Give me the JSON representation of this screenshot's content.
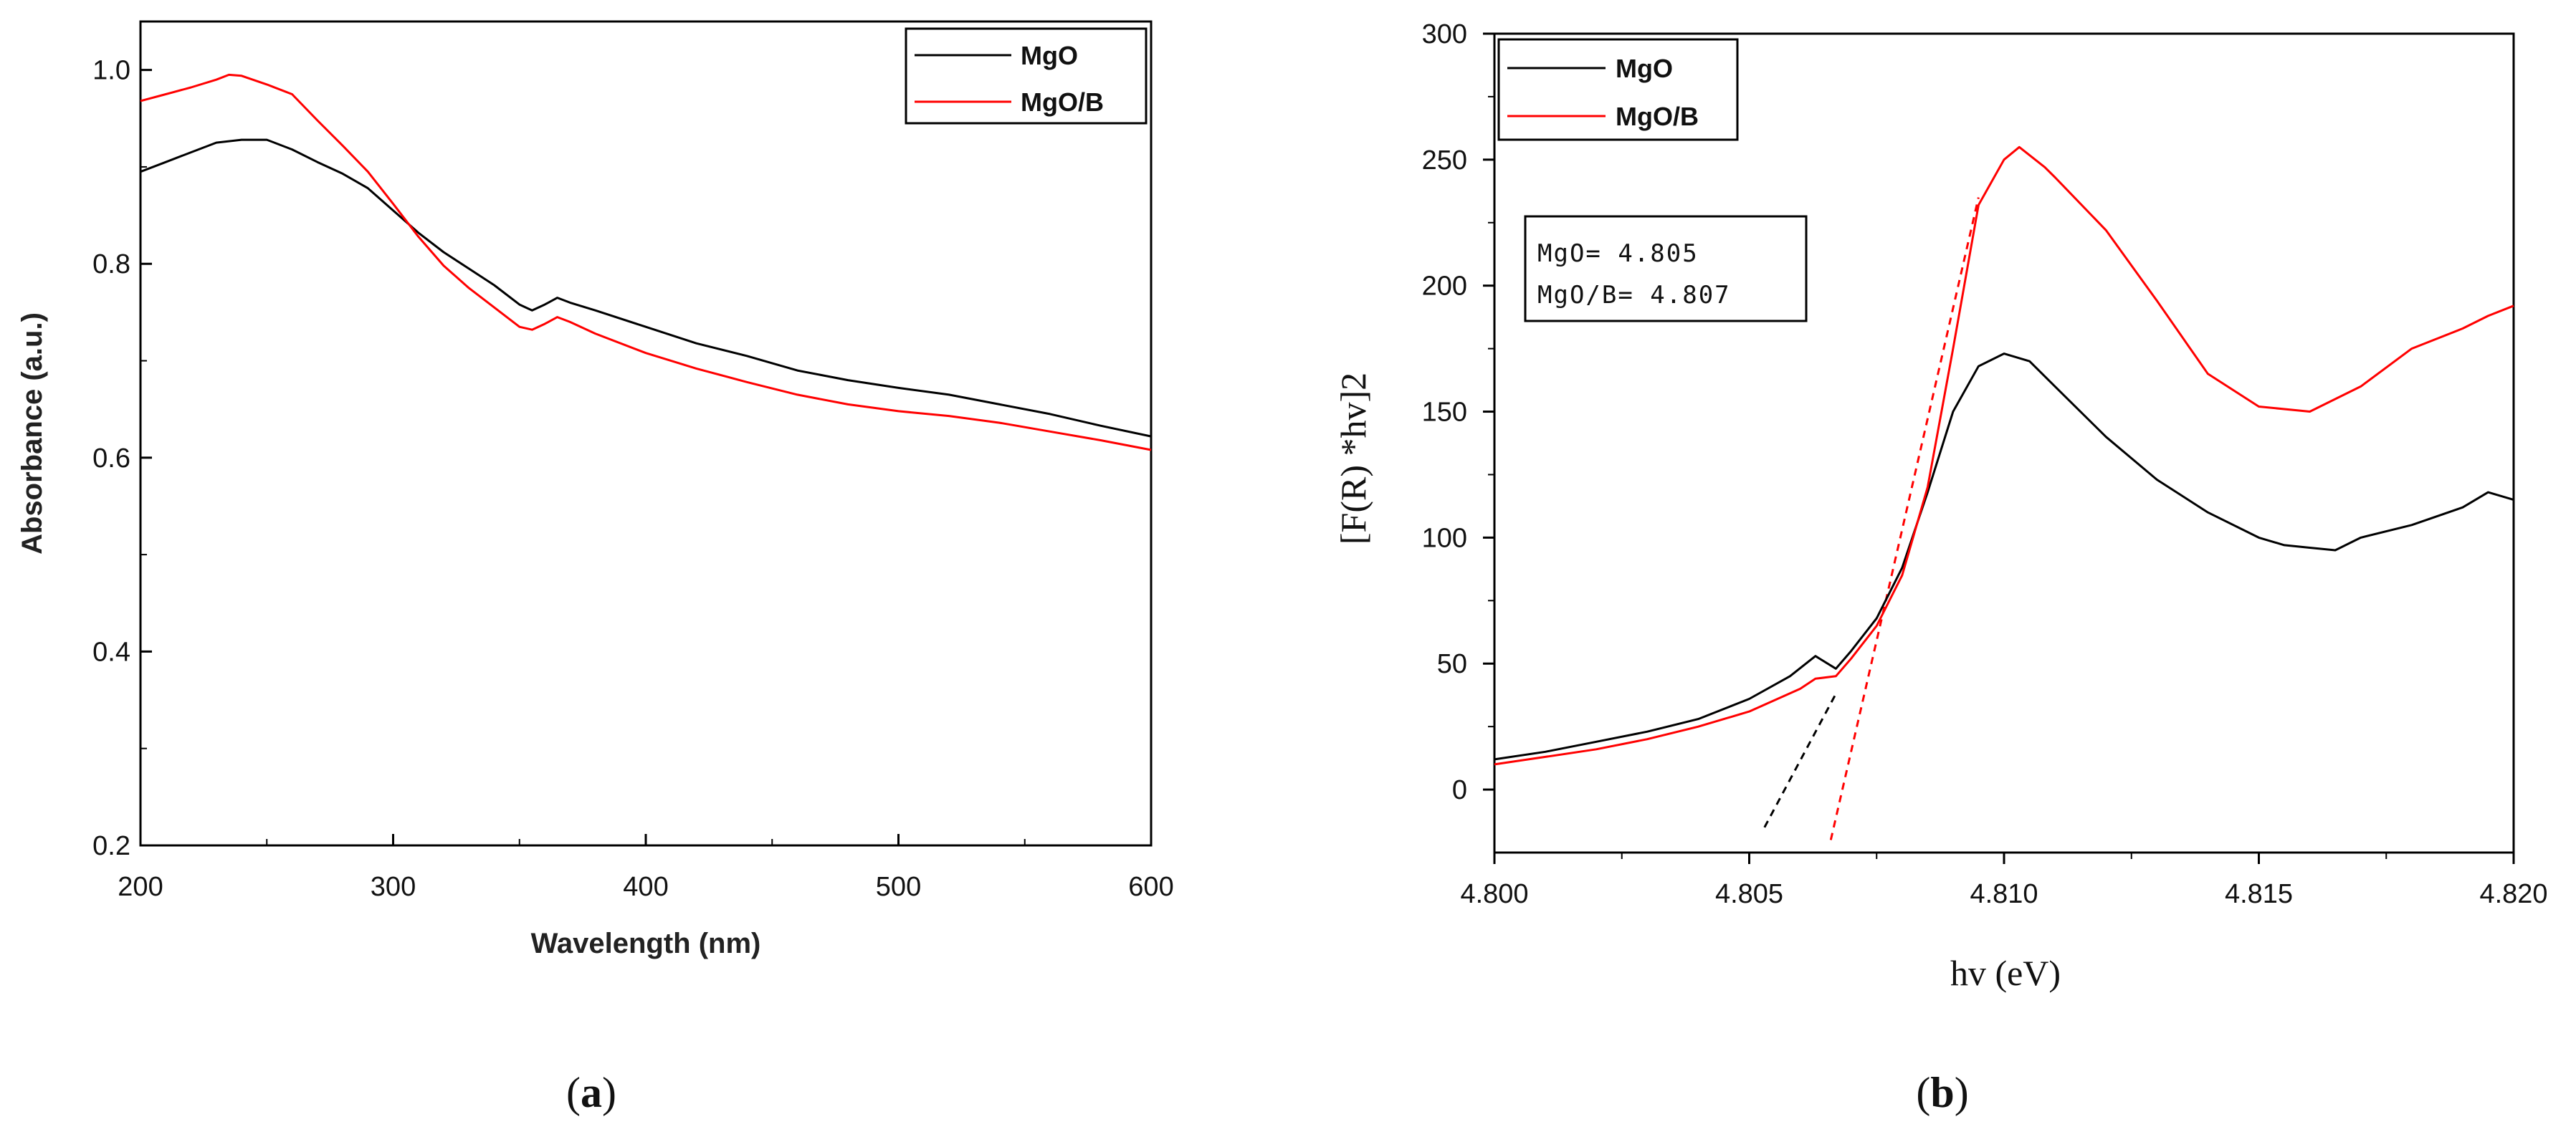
{
  "chart_data": [
    {
      "id": "a",
      "type": "line",
      "caption_label": "a",
      "xlabel": "Wavelength (nm)",
      "ylabel": "Absorbance (a.u.)",
      "xlim": [
        200,
        600
      ],
      "ylim": [
        0.2,
        1.05
      ],
      "xticks": [
        200,
        300,
        400,
        500,
        600
      ],
      "xtick_labels": [
        "200",
        "300",
        "400",
        "500",
        "600"
      ],
      "yticks": [
        0.2,
        0.4,
        0.6,
        0.8,
        1.0
      ],
      "ytick_labels": [
        "0.2",
        "0.4",
        "0.6",
        "0.8",
        "1.0"
      ],
      "legend_position": "top-right",
      "series": [
        {
          "name": "MgO",
          "color": "#000000",
          "x": [
            200,
            210,
            220,
            230,
            240,
            250,
            260,
            270,
            280,
            290,
            300,
            310,
            320,
            330,
            340,
            350,
            355,
            360,
            365,
            370,
            380,
            400,
            420,
            440,
            460,
            480,
            500,
            520,
            540,
            560,
            580,
            600
          ],
          "y": [
            0.895,
            0.905,
            0.915,
            0.925,
            0.928,
            0.928,
            0.918,
            0.905,
            0.893,
            0.878,
            0.855,
            0.832,
            0.812,
            0.795,
            0.778,
            0.758,
            0.752,
            0.758,
            0.765,
            0.76,
            0.752,
            0.735,
            0.718,
            0.705,
            0.69,
            0.68,
            0.672,
            0.665,
            0.655,
            0.645,
            0.633,
            0.622
          ]
        },
        {
          "name": "MgO/B",
          "color": "#ff0000",
          "x": [
            200,
            210,
            220,
            230,
            235,
            240,
            250,
            260,
            270,
            280,
            290,
            300,
            310,
            320,
            330,
            340,
            350,
            355,
            360,
            365,
            370,
            380,
            400,
            420,
            440,
            460,
            480,
            500,
            520,
            540,
            560,
            580,
            600
          ],
          "y": [
            0.968,
            0.975,
            0.982,
            0.99,
            0.995,
            0.994,
            0.985,
            0.975,
            0.948,
            0.922,
            0.895,
            0.862,
            0.828,
            0.798,
            0.775,
            0.755,
            0.735,
            0.732,
            0.738,
            0.745,
            0.74,
            0.728,
            0.708,
            0.692,
            0.678,
            0.665,
            0.655,
            0.648,
            0.643,
            0.636,
            0.627,
            0.618,
            0.608
          ]
        }
      ]
    },
    {
      "id": "b",
      "type": "line",
      "caption_label": "b",
      "xlabel": "hv (eV)",
      "ylabel": "[F(R) *hv]2",
      "xlim": [
        4.8,
        4.82
      ],
      "ylim": [
        -25,
        300
      ],
      "xticks": [
        4.8,
        4.805,
        4.81,
        4.815,
        4.82
      ],
      "xtick_labels": [
        "4.800",
        "4.805",
        "4.810",
        "4.815",
        "4.820"
      ],
      "yticks": [
        0,
        50,
        100,
        150,
        200,
        250,
        300
      ],
      "ytick_labels": [
        "0",
        "50",
        "100",
        "150",
        "200",
        "250",
        "300"
      ],
      "legend_position": "top-left",
      "annotation": [
        "MgO= 4.805",
        "MgO/B= 4.807"
      ],
      "series": [
        {
          "name": "MgO",
          "color": "#000000",
          "x": [
            4.8,
            4.801,
            4.802,
            4.803,
            4.804,
            4.805,
            4.8058,
            4.8063,
            4.8067,
            4.807,
            4.8075,
            4.808,
            4.8085,
            4.809,
            4.8095,
            4.81,
            4.8105,
            4.811,
            4.812,
            4.813,
            4.814,
            4.815,
            4.8155,
            4.816,
            4.8165,
            4.817,
            4.818,
            4.819,
            4.8195,
            4.82
          ],
          "y": [
            12,
            15,
            19,
            23,
            28,
            36,
            45,
            53,
            48,
            55,
            68,
            88,
            118,
            150,
            168,
            173,
            170,
            160,
            140,
            123,
            110,
            100,
            97,
            96,
            95,
            100,
            105,
            112,
            118,
            115
          ]
        },
        {
          "name": "MgO/B",
          "color": "#ff0000",
          "x": [
            4.8,
            4.801,
            4.802,
            4.803,
            4.804,
            4.805,
            4.806,
            4.8063,
            4.8067,
            4.807,
            4.8075,
            4.808,
            4.8085,
            4.809,
            4.8095,
            4.81,
            4.8103,
            4.8108,
            4.811,
            4.812,
            4.813,
            4.814,
            4.815,
            4.816,
            4.817,
            4.818,
            4.819,
            4.8195,
            4.82
          ],
          "y": [
            10,
            13,
            16,
            20,
            25,
            31,
            40,
            44,
            45,
            52,
            65,
            85,
            120,
            175,
            232,
            250,
            255,
            247,
            243,
            222,
            194,
            165,
            152,
            150,
            160,
            175,
            183,
            188,
            192
          ]
        }
      ],
      "tangent_lines": [
        {
          "name": "MgO tangent",
          "color": "#000000",
          "x": [
            4.8053,
            4.8067
          ],
          "y": [
            -15,
            38
          ]
        },
        {
          "name": "MgO/B tangent",
          "color": "#ff0000",
          "x": [
            4.8066,
            4.8095
          ],
          "y": [
            -20,
            235
          ]
        }
      ]
    }
  ]
}
